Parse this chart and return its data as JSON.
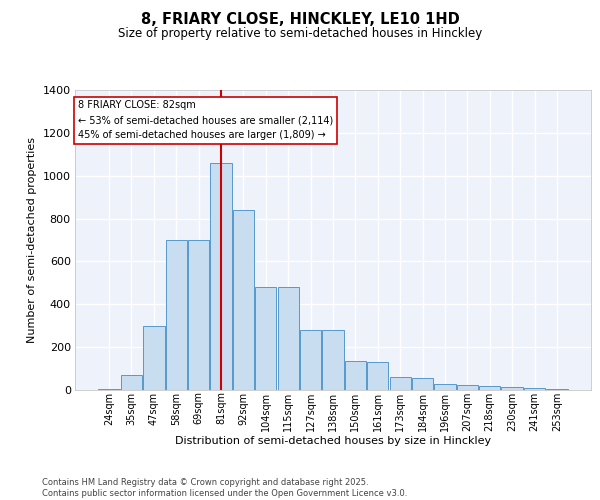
{
  "title_line1": "8, FRIARY CLOSE, HINCKLEY, LE10 1HD",
  "title_line2": "Size of property relative to semi-detached houses in Hinckley",
  "xlabel": "Distribution of semi-detached houses by size in Hinckley",
  "ylabel": "Number of semi-detached properties",
  "footer": "Contains HM Land Registry data © Crown copyright and database right 2025.\nContains public sector information licensed under the Open Government Licence v3.0.",
  "bar_color": "#c9ddf0",
  "bar_edge_color": "#5599cc",
  "background_color": "#eef3fb",
  "grid_color": "#ffffff",
  "vline_color": "#cc0000",
  "annotation_box_edge_color": "#cc0000",
  "categories": [
    "24sqm",
    "35sqm",
    "47sqm",
    "58sqm",
    "69sqm",
    "81sqm",
    "92sqm",
    "104sqm",
    "115sqm",
    "127sqm",
    "138sqm",
    "150sqm",
    "161sqm",
    "173sqm",
    "184sqm",
    "196sqm",
    "207sqm",
    "218sqm",
    "230sqm",
    "241sqm",
    "253sqm"
  ],
  "values": [
    5,
    70,
    300,
    700,
    700,
    1060,
    840,
    480,
    480,
    280,
    280,
    135,
    130,
    60,
    55,
    30,
    25,
    20,
    15,
    10,
    5
  ],
  "property_size_index": 5,
  "annotation_title": "8 FRIARY CLOSE: 82sqm",
  "annotation_line1": "← 53% of semi-detached houses are smaller (2,114)",
  "annotation_line2": "45% of semi-detached houses are larger (1,809) →",
  "ylim": [
    0,
    1400
  ],
  "yticks": [
    0,
    200,
    400,
    600,
    800,
    1000,
    1200,
    1400
  ]
}
